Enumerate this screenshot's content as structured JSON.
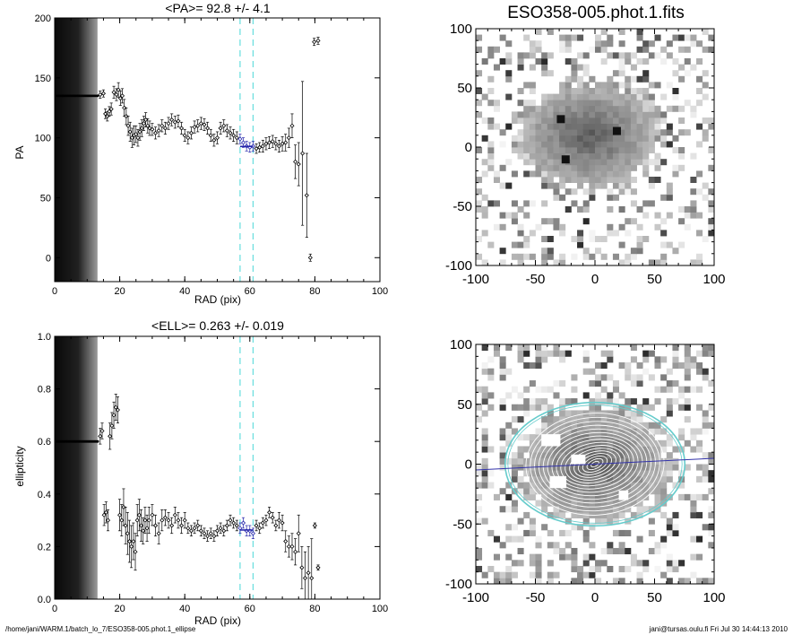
{
  "footer": {
    "left": "/home/jani/WARM.1/batch_lo_7/ESO358-005.phot.1_ellipse",
    "right": "jani@tursas.oulu.fi  Fri Jul 30 14:44:13 2010"
  },
  "chart_data": [
    {
      "id": "pa_profile",
      "type": "scatter",
      "title": "<PA>=  92.8 +/-   4.1",
      "xlabel": "RAD (pix)",
      "ylabel": "PA",
      "xlim": [
        0,
        100
      ],
      "ylim": [
        -20,
        200
      ],
      "xticks": [
        0,
        20,
        40,
        60,
        80,
        100
      ],
      "yticks": [
        0,
        50,
        100,
        150,
        200
      ],
      "vlines": [
        57,
        61
      ],
      "fit_x_range": [
        57,
        61
      ],
      "fit_y": 92.8,
      "grayscale_band_x": [
        0,
        13
      ],
      "saturated_points": {
        "x_range": [
          0,
          13.5
        ],
        "y": 135
      },
      "series": [
        {
          "x": [
            14,
            15,
            15.6,
            16.2,
            16.8,
            17.4,
            18.2,
            19.0,
            19.6,
            20.2,
            20.8,
            21.4,
            22.0,
            22.6,
            23.2,
            23.8,
            24.4,
            25.0,
            25.6,
            26.2,
            26.8,
            27.4,
            28.0,
            28.6,
            29.2,
            30.0,
            31.0,
            32.0,
            33.0,
            34.0,
            35.0,
            36.0,
            37.0,
            38.0,
            39.0,
            40.0,
            41.0,
            42.0,
            43.0,
            44.0,
            45.0,
            46.0,
            47.0,
            48.0,
            49.0,
            50.0,
            51.0,
            52.0,
            53.0,
            54.0,
            55.0,
            56.0,
            57.0,
            58.0,
            59.0,
            60.0,
            61.0,
            62.0,
            63.0,
            64.0,
            65.0,
            66.0,
            67.0,
            68.0,
            69.0,
            70.0,
            71.0,
            72.0,
            73.0,
            74.0,
            75.0,
            76.2,
            77.5,
            78.6,
            79.8,
            81.0
          ],
          "y": [
            136,
            137,
            120,
            118,
            122,
            124,
            138,
            136,
            140,
            133,
            135,
            125,
            118,
            110,
            105,
            100,
            102,
            103,
            100,
            105,
            108,
            112,
            115,
            110,
            108,
            107,
            104,
            106,
            110,
            108,
            112,
            115,
            113,
            114,
            108,
            102,
            100,
            104,
            109,
            110,
            112,
            111,
            108,
            102,
            98,
            100,
            108,
            110,
            106,
            104,
            102,
            100,
            99,
            96,
            93,
            92,
            93,
            91,
            92,
            93,
            95,
            96,
            97,
            95,
            93,
            95,
            96,
            100,
            110,
            80,
            78,
            87,
            52,
            0,
            180,
            181
          ],
          "yerr": [
            3,
            3,
            4,
            4,
            4,
            5,
            5,
            5,
            6,
            6,
            6,
            7,
            7,
            8,
            8,
            8,
            8,
            7,
            7,
            7,
            7,
            6,
            6,
            6,
            6,
            5,
            5,
            5,
            5,
            5,
            5,
            5,
            5,
            5,
            5,
            5,
            5,
            5,
            5,
            5,
            5,
            5,
            5,
            5,
            5,
            5,
            5,
            5,
            5,
            5,
            5,
            5,
            4,
            4,
            4,
            4,
            4,
            4,
            4,
            5,
            5,
            5,
            5,
            5,
            5,
            6,
            7,
            8,
            10,
            14,
            18,
            60,
            35,
            3,
            3,
            3
          ]
        }
      ]
    },
    {
      "id": "ell_profile",
      "type": "scatter",
      "title": "<ELL>= 0.263 +/-  0.019",
      "xlabel": "RAD (pix)",
      "ylabel": "ellipticity",
      "xlim": [
        0,
        100
      ],
      "ylim": [
        0.0,
        1.0
      ],
      "xticks": [
        0,
        20,
        40,
        60,
        80,
        100
      ],
      "yticks": [
        0.0,
        0.2,
        0.4,
        0.6,
        0.8,
        1.0
      ],
      "vlines": [
        57,
        61
      ],
      "fit_x_range": [
        57,
        61
      ],
      "fit_y": 0.263,
      "grayscale_band_x": [
        0,
        13
      ],
      "saturated_points": {
        "x_range": [
          0,
          13.5
        ],
        "y": 0.6
      },
      "series": [
        {
          "x": [
            14,
            14.6,
            15.2,
            15.8,
            16.4,
            17.0,
            17.6,
            18.2,
            18.8,
            19.4,
            20.0,
            20.6,
            21.2,
            21.8,
            22.4,
            23.0,
            23.6,
            24.2,
            24.8,
            25.4,
            26.0,
            26.6,
            27.2,
            27.8,
            28.4,
            29.0,
            30.0,
            31.0,
            32.0,
            33.0,
            34.0,
            35.0,
            36.0,
            37.0,
            38.0,
            39.0,
            40.0,
            41.0,
            42.0,
            43.0,
            44.0,
            45.0,
            46.0,
            47.0,
            48.0,
            49.0,
            50.0,
            51.0,
            52.0,
            53.0,
            54.0,
            55.0,
            56.0,
            57.0,
            58.0,
            59.0,
            60.0,
            61.0,
            62.0,
            63.0,
            64.0,
            65.0,
            66.0,
            67.0,
            68.0,
            69.0,
            70.0,
            71.0,
            72.0,
            73.0,
            74.0,
            75.0,
            76.0,
            77.0,
            78.0,
            79.0,
            80.0,
            81.0
          ],
          "y": [
            0.62,
            0.64,
            0.32,
            0.33,
            0.3,
            0.62,
            0.66,
            0.7,
            0.73,
            0.72,
            0.32,
            0.3,
            0.35,
            0.28,
            0.25,
            0.22,
            0.2,
            0.22,
            0.18,
            0.3,
            0.32,
            0.28,
            0.26,
            0.3,
            0.27,
            0.3,
            0.32,
            0.28,
            0.25,
            0.3,
            0.31,
            0.3,
            0.28,
            0.32,
            0.3,
            0.28,
            0.3,
            0.27,
            0.26,
            0.27,
            0.28,
            0.26,
            0.25,
            0.24,
            0.25,
            0.24,
            0.26,
            0.27,
            0.26,
            0.28,
            0.3,
            0.29,
            0.28,
            0.27,
            0.29,
            0.26,
            0.26,
            0.25,
            0.28,
            0.27,
            0.29,
            0.3,
            0.33,
            0.31,
            0.28,
            0.3,
            0.29,
            0.22,
            0.2,
            0.2,
            0.18,
            0.25,
            0.12,
            0.08,
            0.1,
            0.08,
            0.28,
            0.12
          ],
          "yerr": [
            0.03,
            0.03,
            0.04,
            0.04,
            0.04,
            0.05,
            0.05,
            0.05,
            0.05,
            0.05,
            0.06,
            0.06,
            0.07,
            0.07,
            0.08,
            0.08,
            0.08,
            0.07,
            0.07,
            0.06,
            0.06,
            0.06,
            0.05,
            0.05,
            0.05,
            0.05,
            0.04,
            0.04,
            0.04,
            0.04,
            0.03,
            0.03,
            0.03,
            0.03,
            0.03,
            0.03,
            0.03,
            0.02,
            0.02,
            0.02,
            0.02,
            0.02,
            0.02,
            0.02,
            0.02,
            0.02,
            0.02,
            0.02,
            0.02,
            0.02,
            0.02,
            0.02,
            0.02,
            0.02,
            0.02,
            0.02,
            0.02,
            0.02,
            0.02,
            0.02,
            0.02,
            0.02,
            0.02,
            0.02,
            0.02,
            0.03,
            0.03,
            0.04,
            0.04,
            0.05,
            0.05,
            0.07,
            0.08,
            0.1,
            0.1,
            0.15,
            0.01,
            0.01
          ]
        }
      ]
    },
    {
      "id": "image_raw",
      "type": "heatmap",
      "title": "ESO358-005.phot.1.fits",
      "xlim": [
        -100,
        100
      ],
      "ylim": [
        -100,
        100
      ],
      "xticks": [
        -100,
        -50,
        0,
        50,
        100
      ],
      "yticks": [
        -100,
        -50,
        0,
        50,
        100
      ],
      "galaxy": {
        "center": [
          -5,
          10
        ],
        "semi_major": 55,
        "semi_minor": 42,
        "pa_deg": 92.8
      }
    },
    {
      "id": "image_contours",
      "type": "heatmap",
      "title": "",
      "xlim": [
        -100,
        100
      ],
      "ylim": [
        -100,
        100
      ],
      "xticks": [
        -100,
        -50,
        0,
        50,
        100
      ],
      "yticks": [
        -100,
        -50,
        0,
        50,
        100
      ],
      "galaxy": {
        "center": [
          0,
          0
        ],
        "semi_major": 58,
        "semi_minor": 45,
        "pa_deg": 92.8
      },
      "outer_ellipse_color": "#66cccc",
      "axis_line_color": "#3333aa"
    }
  ],
  "colors": {
    "cyan_dash": "#66dddd",
    "blue_fit": "#2222aa"
  }
}
